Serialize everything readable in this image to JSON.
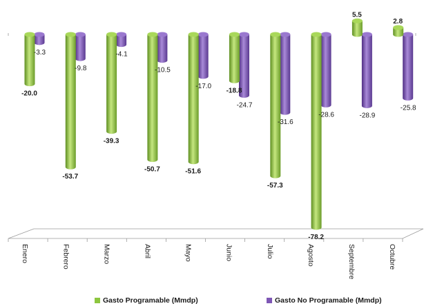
{
  "chart_data": {
    "type": "bar",
    "categories": [
      "Enero",
      "Febrero",
      "Marzo",
      "Abril",
      "Mayo",
      "Junio",
      "Julio",
      "Agosto",
      "Septembre",
      "Octubre"
    ],
    "series": [
      {
        "name": "Gasto Programable (Mmdp)",
        "color": "#8dc63f",
        "values": [
          -20.0,
          -53.7,
          -39.3,
          -50.7,
          -51.6,
          -18.8,
          -57.3,
          -78.2,
          5.5,
          2.8
        ],
        "labels": [
          "-20.0",
          "-53.7",
          "-39.3",
          "-50.7",
          "-51.6",
          "-18.8",
          "-57.3",
          "-78.2",
          "5.5",
          "2.8"
        ]
      },
      {
        "name": "Gasto No Programable (Mmdp)",
        "color": "#7e57b5",
        "values": [
          -3.3,
          -9.8,
          -4.1,
          -10.5,
          -17.0,
          -24.7,
          -31.6,
          -28.6,
          -28.9,
          -25.8
        ],
        "labels": [
          "-3.3",
          "-9.8",
          "-4.1",
          "-10.5",
          "-17.0",
          "-24.7",
          "-31.6",
          "-28.6",
          "-28.9",
          "-25.8"
        ]
      }
    ],
    "ylim": [
      -80,
      6
    ],
    "grid": false,
    "legend_position": "bottom"
  }
}
